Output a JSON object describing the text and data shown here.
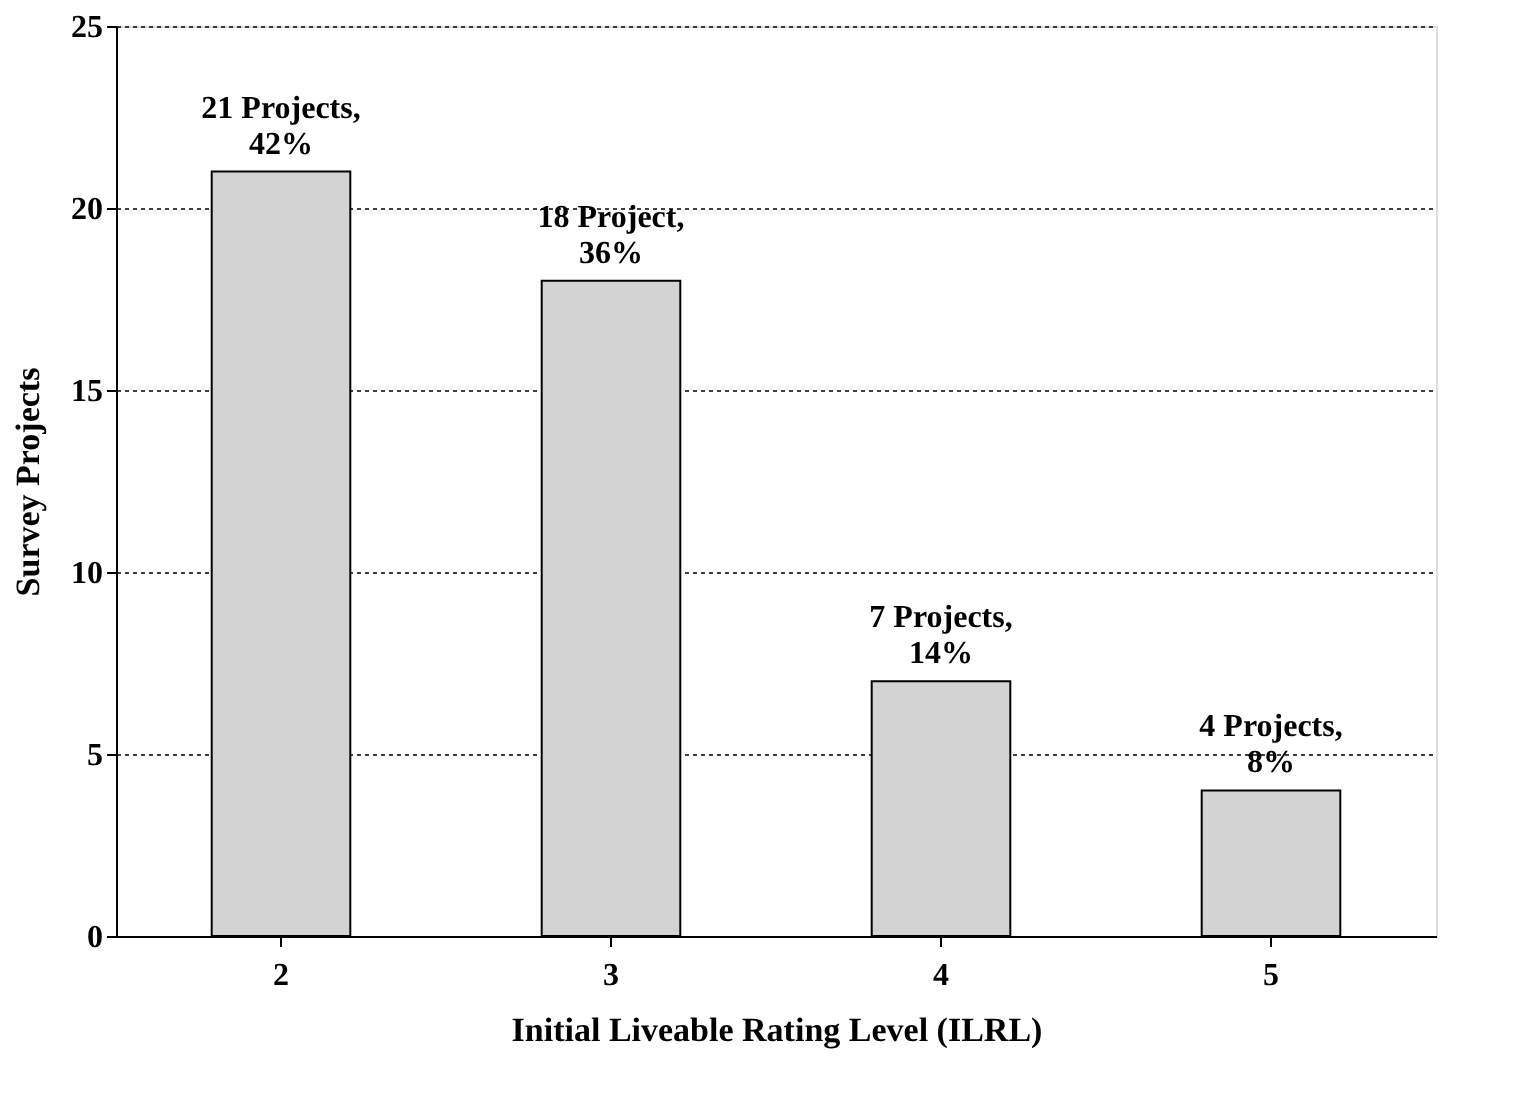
{
  "chart_data": {
    "type": "bar",
    "xlabel": "Initial Liveable Rating Level (ILRL)",
    "ylabel": "Survey Projects",
    "categories": [
      "2",
      "3",
      "4",
      "5"
    ],
    "values": [
      21,
      18,
      7,
      4
    ],
    "value_labels": [
      "21 Projects,\n42%",
      "18 Project,\n36%",
      "7 Projects,\n14%",
      "4 Projects,\n8%"
    ],
    "color": "#d3d3d3",
    "ylim": [
      0,
      25
    ],
    "yticks": [
      0,
      5,
      10,
      15,
      20,
      25
    ],
    "grid": "y"
  }
}
